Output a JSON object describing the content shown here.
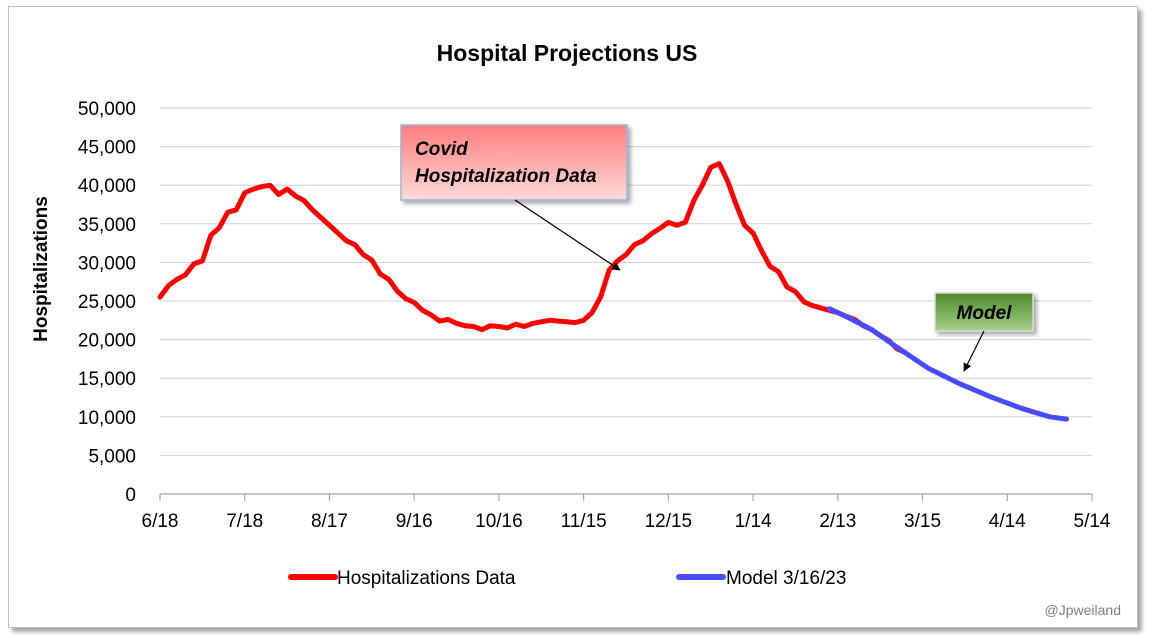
{
  "chart_data": {
    "type": "line",
    "title": "Hospital Projections US",
    "xlabel": "",
    "ylabel": "Hospitalizations",
    "x_tick_labels": [
      "6/18",
      "7/18",
      "8/17",
      "9/16",
      "10/16",
      "11/15",
      "12/15",
      "1/14",
      "2/13",
      "3/15",
      "4/14",
      "5/14"
    ],
    "y_tick_labels": [
      "0",
      "5,000",
      "10,000",
      "15,000",
      "20,000",
      "25,000",
      "30,000",
      "35,000",
      "40,000",
      "45,000",
      "50,000"
    ],
    "ylim": [
      0,
      50000
    ],
    "x_unit": "days since first tick (6/18)",
    "xlim": [
      0,
      330
    ],
    "grid": "horizontal",
    "legend_position": "bottom",
    "series": [
      {
        "name": "Hospitalizations Data",
        "color": "#ff0000",
        "points": [
          [
            0,
            25500
          ],
          [
            3,
            27000
          ],
          [
            6,
            27800
          ],
          [
            9,
            28400
          ],
          [
            12,
            29800
          ],
          [
            15,
            30200
          ],
          [
            18,
            33500
          ],
          [
            21,
            34500
          ],
          [
            24,
            36500
          ],
          [
            27,
            36800
          ],
          [
            30,
            39000
          ],
          [
            33,
            39500
          ],
          [
            36,
            39800
          ],
          [
            39,
            40000
          ],
          [
            42,
            38800
          ],
          [
            45,
            39500
          ],
          [
            48,
            38600
          ],
          [
            51,
            38000
          ],
          [
            54,
            36800
          ],
          [
            57,
            35800
          ],
          [
            60,
            34800
          ],
          [
            63,
            33800
          ],
          [
            66,
            32800
          ],
          [
            69,
            32300
          ],
          [
            72,
            31000
          ],
          [
            75,
            30300
          ],
          [
            78,
            28500
          ],
          [
            81,
            27800
          ],
          [
            84,
            26300
          ],
          [
            87,
            25300
          ],
          [
            90,
            24800
          ],
          [
            93,
            23800
          ],
          [
            96,
            23200
          ],
          [
            99,
            22400
          ],
          [
            102,
            22600
          ],
          [
            105,
            22100
          ],
          [
            108,
            21800
          ],
          [
            111,
            21700
          ],
          [
            114,
            21300
          ],
          [
            117,
            21800
          ],
          [
            120,
            21700
          ],
          [
            123,
            21500
          ],
          [
            126,
            22000
          ],
          [
            129,
            21700
          ],
          [
            132,
            22100
          ],
          [
            135,
            22300
          ],
          [
            138,
            22500
          ],
          [
            141,
            22400
          ],
          [
            144,
            22300
          ],
          [
            147,
            22200
          ],
          [
            150,
            22500
          ],
          [
            153,
            23500
          ],
          [
            156,
            25500
          ],
          [
            159,
            29000
          ],
          [
            162,
            30200
          ],
          [
            165,
            31000
          ],
          [
            168,
            32300
          ],
          [
            171,
            32800
          ],
          [
            174,
            33700
          ],
          [
            177,
            34400
          ],
          [
            180,
            35200
          ],
          [
            183,
            34800
          ],
          [
            186,
            35200
          ],
          [
            189,
            38000
          ],
          [
            192,
            40000
          ],
          [
            195,
            42300
          ],
          [
            198,
            42800
          ],
          [
            201,
            40500
          ],
          [
            204,
            37500
          ],
          [
            207,
            34800
          ],
          [
            210,
            33800
          ],
          [
            213,
            31500
          ],
          [
            216,
            29500
          ],
          [
            219,
            28800
          ],
          [
            222,
            26800
          ],
          [
            225,
            26200
          ],
          [
            228,
            24900
          ],
          [
            231,
            24400
          ],
          [
            234,
            24100
          ],
          [
            237,
            23800
          ],
          [
            240,
            23500
          ],
          [
            243,
            23000
          ],
          [
            246,
            22600
          ],
          [
            249,
            21800
          ],
          [
            252,
            21300
          ],
          [
            255,
            20500
          ],
          [
            258,
            19900
          ],
          [
            261,
            18800
          ],
          [
            264,
            18300
          ]
        ]
      },
      {
        "name": "Model 3/16/23",
        "color": "#4a4aff",
        "points": [
          [
            237,
            24000
          ],
          [
            244,
            22800
          ],
          [
            252,
            21300
          ],
          [
            261,
            19000
          ],
          [
            272,
            16300
          ],
          [
            283,
            14300
          ],
          [
            294,
            12600
          ],
          [
            305,
            11100
          ],
          [
            315,
            10000
          ],
          [
            321,
            9700
          ]
        ]
      }
    ],
    "annotations": [
      {
        "text_lines": [
          "Covid",
          "Hospitalization Data"
        ],
        "color": "#ff7b7b"
      },
      {
        "text_lines": [
          "Model"
        ],
        "color": "#5e9b3c"
      }
    ]
  },
  "credit": "@Jpweiland"
}
